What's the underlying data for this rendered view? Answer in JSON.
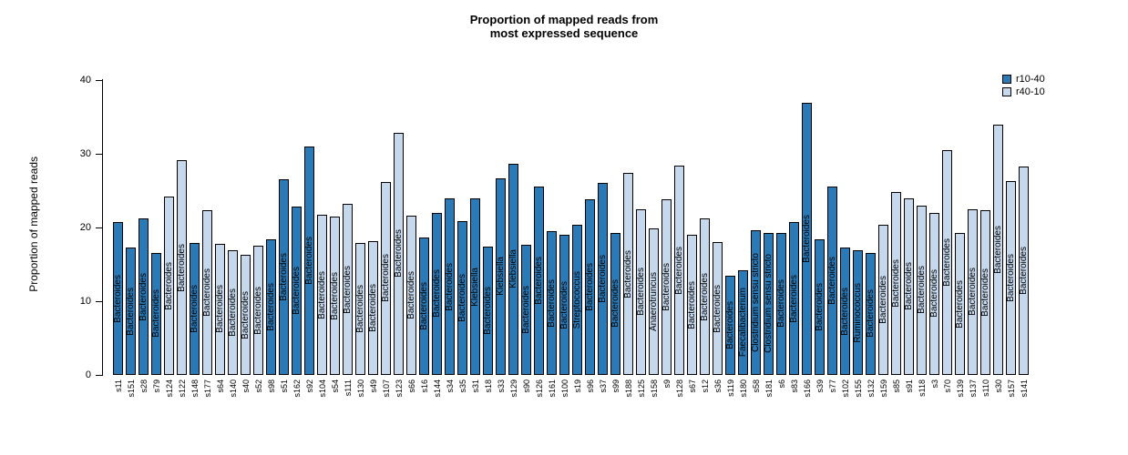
{
  "title": {
    "line1": "Proportion of mapped reads from",
    "line2": "most expressed sequence"
  },
  "y_axis": {
    "label": "Proportion of mapped reads",
    "ticks": [
      0,
      10,
      20,
      30,
      40
    ],
    "max": 40
  },
  "legend": [
    {
      "label": "r10-40",
      "color": "#2b7ab8"
    },
    {
      "label": "r40-10",
      "color": "#c6d8ec"
    }
  ],
  "chart_data": {
    "type": "bar",
    "title": "Proportion of mapped reads from most expressed sequence",
    "xlabel": "",
    "ylabel": "Proportion of mapped reads",
    "ylim": [
      0,
      40
    ],
    "grid": false,
    "legend_position": "topright",
    "groups": [
      "r10-40",
      "r40-10"
    ],
    "group_colors": {
      "r10-40": "#2b7ab8",
      "r40-10": "#c6d8ec"
    },
    "bars": [
      {
        "sample": "s11",
        "value": 20.7,
        "group": "r10-40",
        "genus": "Bacteroides"
      },
      {
        "sample": "s151",
        "value": 17.3,
        "group": "r10-40",
        "genus": "Bacteroides"
      },
      {
        "sample": "s28",
        "value": 21.2,
        "group": "r10-40",
        "genus": "Bacteroides"
      },
      {
        "sample": "s79",
        "value": 16.6,
        "group": "r10-40",
        "genus": "Bacteroides"
      },
      {
        "sample": "s124",
        "value": 24.2,
        "group": "r40-10",
        "genus": "Bacteroides"
      },
      {
        "sample": "s122",
        "value": 29.1,
        "group": "r40-10",
        "genus": "Bacteroides"
      },
      {
        "sample": "s148",
        "value": 17.9,
        "group": "r10-40",
        "genus": "Bacteroides"
      },
      {
        "sample": "s177",
        "value": 22.3,
        "group": "r40-10",
        "genus": "Bacteroides"
      },
      {
        "sample": "s64",
        "value": 17.8,
        "group": "r40-10",
        "genus": "Bacteroides"
      },
      {
        "sample": "s140",
        "value": 16.9,
        "group": "r40-10",
        "genus": "Bacteroides"
      },
      {
        "sample": "s40",
        "value": 16.3,
        "group": "r40-10",
        "genus": "Bacteroides"
      },
      {
        "sample": "s52",
        "value": 17.5,
        "group": "r40-10",
        "genus": "Bacteroides"
      },
      {
        "sample": "s98",
        "value": 18.4,
        "group": "r10-40",
        "genus": "Bacteroides"
      },
      {
        "sample": "s51",
        "value": 26.5,
        "group": "r10-40",
        "genus": "Bacteroides"
      },
      {
        "sample": "s162",
        "value": 22.9,
        "group": "r10-40",
        "genus": "Bacteroides"
      },
      {
        "sample": "s92",
        "value": 31.0,
        "group": "r10-40",
        "genus": "Bacteroides"
      },
      {
        "sample": "s104",
        "value": 21.7,
        "group": "r40-10",
        "genus": "Bacteroides"
      },
      {
        "sample": "s54",
        "value": 21.5,
        "group": "r40-10",
        "genus": "Bacteroides"
      },
      {
        "sample": "s111",
        "value": 23.2,
        "group": "r40-10",
        "genus": "Bacteroides"
      },
      {
        "sample": "s130",
        "value": 17.9,
        "group": "r40-10",
        "genus": "Bacteroides"
      },
      {
        "sample": "s49",
        "value": 18.1,
        "group": "r40-10",
        "genus": "Bacteroides"
      },
      {
        "sample": "s107",
        "value": 26.2,
        "group": "r40-10",
        "genus": "Bacteroides"
      },
      {
        "sample": "s123",
        "value": 32.9,
        "group": "r40-10",
        "genus": "Bacteroides"
      },
      {
        "sample": "s66",
        "value": 21.6,
        "group": "r40-10",
        "genus": "Bacteroides"
      },
      {
        "sample": "s16",
        "value": 18.6,
        "group": "r10-40",
        "genus": "Bacteroides"
      },
      {
        "sample": "s144",
        "value": 22.0,
        "group": "r10-40",
        "genus": "Bacteroides"
      },
      {
        "sample": "s34",
        "value": 23.9,
        "group": "r10-40",
        "genus": "Bacteroides"
      },
      {
        "sample": "s35",
        "value": 20.9,
        "group": "r10-40",
        "genus": "Bacteroides"
      },
      {
        "sample": "s31",
        "value": 23.9,
        "group": "r10-40",
        "genus": "Klebsiella"
      },
      {
        "sample": "s18",
        "value": 17.4,
        "group": "r10-40",
        "genus": "Bacteroides"
      },
      {
        "sample": "s33",
        "value": 26.7,
        "group": "r10-40",
        "genus": "Klebsiella"
      },
      {
        "sample": "s129",
        "value": 28.7,
        "group": "r10-40",
        "genus": "Klebsiella"
      },
      {
        "sample": "s90",
        "value": 17.6,
        "group": "r10-40",
        "genus": "Bacteroides"
      },
      {
        "sample": "s126",
        "value": 25.5,
        "group": "r10-40",
        "genus": "Bacteroides"
      },
      {
        "sample": "s161",
        "value": 19.5,
        "group": "r10-40",
        "genus": "Bacteroides"
      },
      {
        "sample": "s100",
        "value": 19.0,
        "group": "r10-40",
        "genus": "Bacteroides"
      },
      {
        "sample": "s19",
        "value": 20.4,
        "group": "r10-40",
        "genus": "Streptococcus"
      },
      {
        "sample": "s96",
        "value": 23.8,
        "group": "r10-40",
        "genus": "Bacteroides"
      },
      {
        "sample": "s37",
        "value": 26.0,
        "group": "r10-40",
        "genus": "Bacteroides"
      },
      {
        "sample": "s99",
        "value": 19.3,
        "group": "r10-40",
        "genus": "Bacteroides"
      },
      {
        "sample": "s188",
        "value": 27.4,
        "group": "r40-10",
        "genus": "Bacteroides"
      },
      {
        "sample": "s125",
        "value": 22.5,
        "group": "r40-10",
        "genus": "Bacteroides"
      },
      {
        "sample": "s158",
        "value": 19.9,
        "group": "r40-10",
        "genus": "Anaerotruncus"
      },
      {
        "sample": "s9",
        "value": 23.8,
        "group": "r40-10",
        "genus": "Bacteroides"
      },
      {
        "sample": "s128",
        "value": 28.4,
        "group": "r40-10",
        "genus": "Bacteroides"
      },
      {
        "sample": "s67",
        "value": 19.0,
        "group": "r40-10",
        "genus": "Bacteroides"
      },
      {
        "sample": "s12",
        "value": 21.2,
        "group": "r40-10",
        "genus": "Bacteroides"
      },
      {
        "sample": "s36",
        "value": 18.0,
        "group": "r40-10",
        "genus": "Bacteroides"
      },
      {
        "sample": "s119",
        "value": 13.4,
        "group": "r10-40",
        "genus": "Bacteroides"
      },
      {
        "sample": "s180",
        "value": 14.2,
        "group": "r10-40",
        "genus": "Faecalibacterium"
      },
      {
        "sample": "s58",
        "value": 19.6,
        "group": "r10-40",
        "genus": "Clostridium sensu stricto"
      },
      {
        "sample": "s181",
        "value": 19.3,
        "group": "r10-40",
        "genus": "Clostridium sensu stricto"
      },
      {
        "sample": "s6",
        "value": 19.3,
        "group": "r10-40",
        "genus": "Bacteroides"
      },
      {
        "sample": "s83",
        "value": 20.7,
        "group": "r10-40",
        "genus": "Bacteroides"
      },
      {
        "sample": "s166",
        "value": 36.9,
        "group": "r10-40",
        "genus": "Bacteroides"
      },
      {
        "sample": "s39",
        "value": 18.4,
        "group": "r10-40",
        "genus": "Bacteroides"
      },
      {
        "sample": "s77",
        "value": 25.5,
        "group": "r10-40",
        "genus": "Bacteroides"
      },
      {
        "sample": "s102",
        "value": 17.3,
        "group": "r10-40",
        "genus": "Bacteroides"
      },
      {
        "sample": "s155",
        "value": 16.9,
        "group": "r10-40",
        "genus": "Ruminococcus"
      },
      {
        "sample": "s132",
        "value": 16.6,
        "group": "r10-40",
        "genus": "Bacteroides"
      },
      {
        "sample": "s159",
        "value": 20.4,
        "group": "r40-10",
        "genus": "Bacteroides"
      },
      {
        "sample": "s85",
        "value": 24.8,
        "group": "r40-10",
        "genus": "Bacteroides"
      },
      {
        "sample": "s91",
        "value": 24.0,
        "group": "r40-10",
        "genus": "Bacteroides"
      },
      {
        "sample": "s118",
        "value": 23.0,
        "group": "r40-10",
        "genus": "Bacteroides"
      },
      {
        "sample": "s3",
        "value": 22.0,
        "group": "r40-10",
        "genus": "Bacteroides"
      },
      {
        "sample": "s70",
        "value": 30.5,
        "group": "r40-10",
        "genus": "Bacteroides"
      },
      {
        "sample": "s139",
        "value": 19.2,
        "group": "r40-10",
        "genus": "Bacteroides"
      },
      {
        "sample": "s137",
        "value": 22.5,
        "group": "r40-10",
        "genus": "Bacteroides"
      },
      {
        "sample": "s110",
        "value": 22.3,
        "group": "r40-10",
        "genus": "Bacteroides"
      },
      {
        "sample": "s30",
        "value": 34.0,
        "group": "r40-10",
        "genus": "Bacteroides"
      },
      {
        "sample": "s157",
        "value": 26.3,
        "group": "r40-10",
        "genus": "Bacteroides"
      },
      {
        "sample": "s141",
        "value": 28.3,
        "group": "r40-10",
        "genus": "Bacteroides"
      }
    ]
  }
}
